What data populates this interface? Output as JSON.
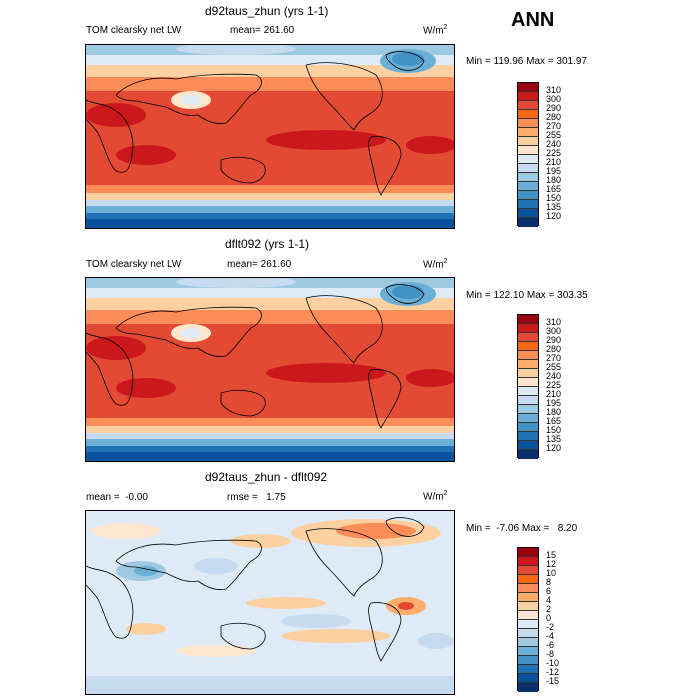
{
  "headline": "ANN",
  "units": "W/m",
  "units_exp": "2",
  "panels": [
    {
      "title": "d92taus_zhun (yrs 1-1)",
      "label_left": "TOM clearsky net LW",
      "label_mid": "mean= 261.60",
      "minmax": "Min = 119.96 Max = 301.97",
      "levels": [
        "310",
        "300",
        "290",
        "280",
        "270",
        "255",
        "240",
        "225",
        "210",
        "195",
        "180",
        "165",
        "150",
        "135",
        "120"
      ],
      "colors": [
        "#99000d",
        "#cb181d",
        "#e34a33",
        "#f16913",
        "#fc8d59",
        "#fdae6b",
        "#fdd0a2",
        "#fee6ce",
        "#deebf7",
        "#c6dbef",
        "#9ecae1",
        "#6baed6",
        "#4292c6",
        "#2171b5",
        "#08519c",
        "#08306b"
      ]
    },
    {
      "title": "dflt092 (yrs 1-1)",
      "label_left": "TOM clearsky net LW",
      "label_mid": "mean= 261.60",
      "minmax": "Min = 122.10 Max = 303.35",
      "levels": [
        "310",
        "300",
        "290",
        "280",
        "270",
        "255",
        "240",
        "225",
        "210",
        "195",
        "180",
        "165",
        "150",
        "135",
        "120"
      ],
      "colors": [
        "#99000d",
        "#cb181d",
        "#e34a33",
        "#f16913",
        "#fc8d59",
        "#fdae6b",
        "#fdd0a2",
        "#fee6ce",
        "#deebf7",
        "#c6dbef",
        "#9ecae1",
        "#6baed6",
        "#4292c6",
        "#2171b5",
        "#08519c",
        "#08306b"
      ]
    },
    {
      "title": "d92taus_zhun - dflt092",
      "label_left": "mean =  -0.00",
      "label_mid": "rmse =   1.75",
      "minmax": "Min =  -7.06 Max =   8.20",
      "levels": [
        "15",
        "12",
        "10",
        "8",
        "6",
        "4",
        "2",
        "0",
        "-2",
        "-4",
        "-6",
        "-8",
        "-10",
        "-12",
        "-15"
      ],
      "colors": [
        "#99000d",
        "#cb181d",
        "#e34a33",
        "#f16913",
        "#fc8d59",
        "#fdae6b",
        "#fdd0a2",
        "#fee6ce",
        "#deebf7",
        "#c6dbef",
        "#9ecae1",
        "#6baed6",
        "#4292c6",
        "#2171b5",
        "#08519c",
        "#08306b"
      ]
    }
  ]
}
